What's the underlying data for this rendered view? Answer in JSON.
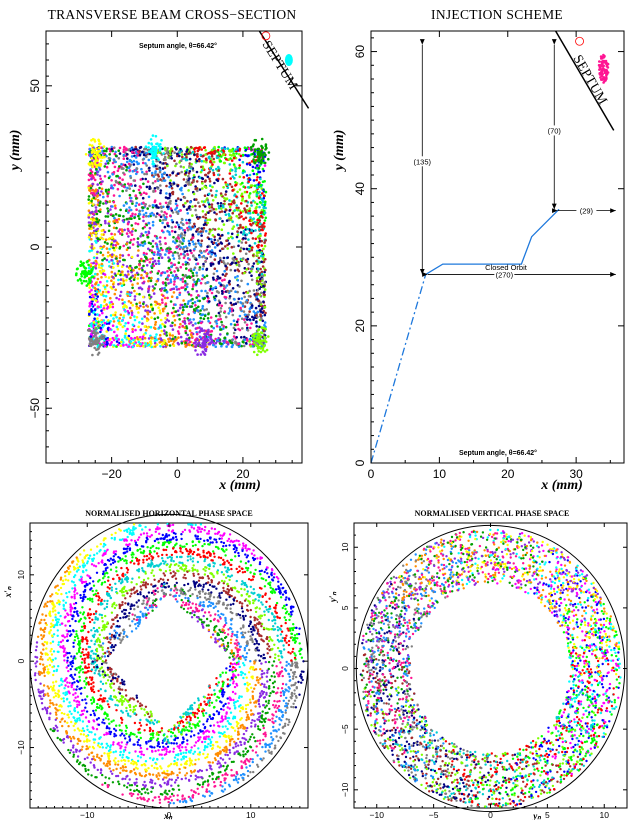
{
  "chart_data": [
    {
      "type": "scatter",
      "title": "TRANSVERSE BEAM CROSS−SECTION",
      "xlabel": "x (mm)",
      "ylabel": "y (mm)",
      "xlim": [
        -40,
        38
      ],
      "ylim": [
        -67,
        67
      ],
      "xticks": [
        -20,
        0,
        20
      ],
      "yticks": [
        -50,
        0,
        50
      ],
      "annotation": "Septum angle, θ=66.42°",
      "septum_label": "SEPTUM",
      "septum_line": [
        [
          25,
          67
        ],
        [
          40,
          43
        ]
      ],
      "beam_region": {
        "x": [
          -27,
          27
        ],
        "y": [
          -31,
          31
        ]
      },
      "extra_blob": {
        "x": 34,
        "y": 58
      },
      "grid": false
    },
    {
      "type": "line",
      "title": "INJECTION SCHEME",
      "xlabel": "x (mm)",
      "ylabel": "y (mm)",
      "xlim": [
        0,
        37
      ],
      "ylim": [
        0,
        63
      ],
      "xticks": [
        0,
        10,
        20,
        30
      ],
      "yticks": [
        0,
        20,
        40,
        60
      ],
      "annotation": "Septum angle, θ=66.42°",
      "septum_label": "SEPTUM",
      "septum_line": [
        [
          27,
          63
        ],
        [
          35.5,
          48.5
        ]
      ],
      "series": [
        {
          "style": "dash-dot",
          "x": [
            0,
            8
          ],
          "y": [
            0,
            27.5
          ]
        },
        {
          "style": "solid",
          "x": [
            8,
            10.5,
            15,
            22,
            23.5,
            27.5
          ],
          "y": [
            27.5,
            29,
            29,
            29,
            33,
            37
          ]
        }
      ],
      "arrow_labels": [
        "(135)",
        "(70)",
        "(29)",
        "(270)"
      ],
      "text_labels": [
        "Closed Orbit"
      ],
      "grid": false
    },
    {
      "type": "scatter",
      "title": "NORMALISED HORIZONTAL PHASE SPACE",
      "xlabel": "xₙ",
      "ylabel": "x′ₙ",
      "xlim": [
        -17,
        17
      ],
      "ylim": [
        -17,
        16
      ],
      "xticks": [
        -10,
        0,
        10
      ],
      "yticks": [
        -10,
        0,
        10
      ],
      "acceptance_radius": 17,
      "beam_annulus": [
        5,
        16.5
      ],
      "grid": false
    },
    {
      "type": "scatter",
      "title": "NORMALISED VERTICAL PHASE SPACE",
      "xlabel": "yₙ",
      "ylabel": "y′ₙ",
      "xlim": [
        -12,
        12
      ],
      "ylim": [
        -11.5,
        12
      ],
      "xticks": [
        -10,
        -5,
        0,
        5,
        10
      ],
      "yticks": [
        -10,
        -5,
        0,
        5,
        10
      ],
      "acceptance_radius": 11.8,
      "beam_annulus": [
        7,
        11.5
      ],
      "grid": false
    }
  ],
  "palette": [
    "#ff0000",
    "#00ff00",
    "#0000ff",
    "#ff00ff",
    "#00ffff",
    "#ffff00",
    "#ff8c00",
    "#8a2be2",
    "#00a000",
    "#ff1493",
    "#1e90ff",
    "#808080",
    "#000080",
    "#a52a2a",
    "#7fff00",
    "#00ced1"
  ]
}
